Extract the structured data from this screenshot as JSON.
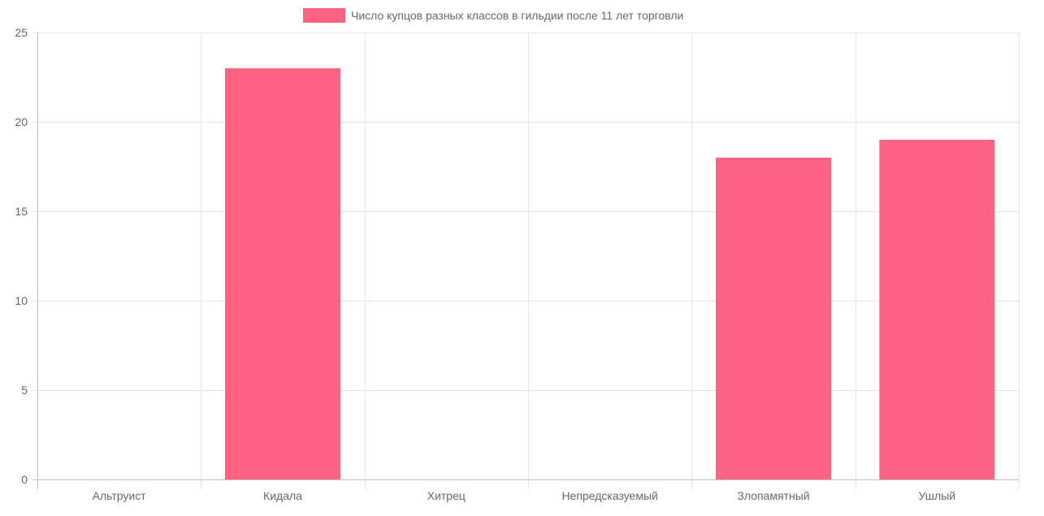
{
  "chart_data": {
    "type": "bar",
    "categories": [
      "Альтруист",
      "Кидала",
      "Хитрец",
      "Непредсказуемый",
      "Злопамятный",
      "Ушлый"
    ],
    "series": [
      {
        "name": "Число купцов разных классов в гильдии после 11 лет торговли",
        "values": [
          0,
          23,
          0,
          0,
          18,
          19
        ],
        "color": "#ff6384"
      }
    ],
    "ylim": [
      0,
      25
    ],
    "y_ticks": [
      0,
      5,
      10,
      15,
      20,
      25
    ],
    "grid": true,
    "legend_position": "top-center"
  }
}
